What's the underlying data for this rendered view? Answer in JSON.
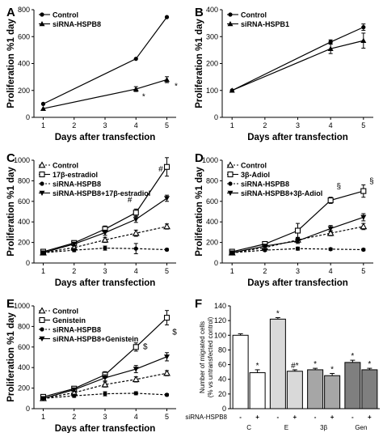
{
  "chart_data": [
    {
      "panel": "A",
      "type": "line",
      "x": [
        1,
        4,
        5
      ],
      "xlim": [
        0.7,
        5.3
      ],
      "ylim": [
        0,
        800
      ],
      "yticks": [
        0,
        200,
        400,
        600,
        800
      ],
      "xticks": [
        1,
        2,
        3,
        4,
        5
      ],
      "xlabel": "Days after transfection",
      "ylabel": "Proliferation %1 day",
      "series": [
        {
          "name": "Control",
          "marker": "circle",
          "dash": false,
          "values": [
            100,
            435,
            745
          ],
          "err": [
            0,
            0,
            0
          ]
        },
        {
          "name": "siRNA-HSPB8",
          "marker": "triangle",
          "dash": false,
          "values": [
            65,
            210,
            280
          ],
          "err": [
            0,
            18,
            22
          ]
        }
      ],
      "annotations": [
        {
          "x": 4.25,
          "y": 135,
          "text": "*"
        },
        {
          "x": 5.3,
          "y": 215,
          "text": "*"
        }
      ],
      "legend": "top-left"
    },
    {
      "panel": "B",
      "type": "line",
      "x": [
        1,
        4,
        5
      ],
      "xlim": [
        0.7,
        5.3
      ],
      "ylim": [
        0,
        400
      ],
      "yticks": [
        0,
        100,
        200,
        300,
        400
      ],
      "xticks": [
        1,
        2,
        3,
        4,
        5
      ],
      "xlabel": "Days after transfection",
      "ylabel": "Proliferation %1 day",
      "series": [
        {
          "name": "Control",
          "marker": "circle",
          "dash": false,
          "values": [
            100,
            280,
            335
          ],
          "err": [
            0,
            8,
            12
          ]
        },
        {
          "name": "siRNA-HSPB1",
          "marker": "triangle",
          "dash": false,
          "values": [
            100,
            255,
            285
          ],
          "err": [
            0,
            18,
            28
          ]
        }
      ],
      "annotations": [],
      "legend": "top-left"
    },
    {
      "panel": "C",
      "type": "line",
      "x": [
        1,
        2,
        3,
        4,
        5
      ],
      "xlim": [
        0.7,
        5.3
      ],
      "ylim": [
        0,
        1000
      ],
      "yticks": [
        0,
        200,
        400,
        600,
        800,
        1000
      ],
      "xticks": [
        1,
        2,
        3,
        4,
        5
      ],
      "xlabel": "Days after transfection",
      "ylabel": "Proliferation %1 day",
      "series": [
        {
          "name": "Control",
          "marker": "triangle-open",
          "dash": true,
          "values": [
            100,
            150,
            225,
            290,
            355
          ],
          "err": [
            10,
            15,
            25,
            30,
            25
          ]
        },
        {
          "name": "17β-estradiol",
          "marker": "square-open",
          "dash": false,
          "values": [
            110,
            195,
            330,
            490,
            935
          ],
          "err": [
            10,
            20,
            30,
            35,
            90
          ]
        },
        {
          "name": "siRNA-HSPB8",
          "marker": "circle",
          "dash": true,
          "values": [
            100,
            125,
            145,
            140,
            130
          ],
          "err": [
            10,
            15,
            20,
            50,
            10
          ]
        },
        {
          "name": "siRNA-HSPB8+17β-estradiol",
          "marker": "triangle-down",
          "dash": false,
          "values": [
            100,
            185,
            295,
            425,
            630
          ],
          "err": [
            10,
            15,
            25,
            30,
            30
          ]
        }
      ],
      "annotations": [
        {
          "x": 3.8,
          "y": 590,
          "text": "#"
        },
        {
          "x": 4.8,
          "y": 890,
          "text": "#"
        }
      ],
      "legend": "top-left"
    },
    {
      "panel": "D",
      "type": "line",
      "x": [
        1,
        2,
        3,
        4,
        5
      ],
      "xlim": [
        0.7,
        5.3
      ],
      "ylim": [
        0,
        1000
      ],
      "yticks": [
        0,
        200,
        400,
        600,
        800,
        1000
      ],
      "xticks": [
        1,
        2,
        3,
        4,
        5
      ],
      "xlabel": "Days after transfection",
      "ylabel": "Proliferation %1 day",
      "series": [
        {
          "name": "Control",
          "marker": "triangle-open",
          "dash": true,
          "values": [
            100,
            150,
            225,
            290,
            355
          ],
          "err": [
            10,
            15,
            25,
            25,
            30
          ]
        },
        {
          "name": "3β-Adiol",
          "marker": "square-open",
          "dash": false,
          "values": [
            110,
            185,
            315,
            610,
            700
          ],
          "err": [
            10,
            20,
            70,
            30,
            60
          ]
        },
        {
          "name": "siRNA-HSPB8",
          "marker": "circle",
          "dash": true,
          "values": [
            100,
            125,
            140,
            135,
            130
          ],
          "err": [
            10,
            10,
            15,
            10,
            10
          ]
        },
        {
          "name": "siRNA-HSPB8+3β-Adiol",
          "marker": "triangle-down",
          "dash": false,
          "values": [
            100,
            165,
            215,
            335,
            445
          ],
          "err": [
            10,
            15,
            25,
            30,
            35
          ]
        }
      ],
      "annotations": [
        {
          "x": 4.25,
          "y": 720,
          "text": "§"
        },
        {
          "x": 5.25,
          "y": 770,
          "text": "§"
        }
      ],
      "legend": "top-left"
    },
    {
      "panel": "E",
      "type": "line",
      "x": [
        1,
        2,
        3,
        4,
        5
      ],
      "xlim": [
        0.7,
        5.3
      ],
      "ylim": [
        0,
        1000
      ],
      "yticks": [
        0,
        200,
        400,
        600,
        800,
        1000
      ],
      "xticks": [
        1,
        2,
        3,
        4,
        5
      ],
      "xlabel": "Days after transfection",
      "ylabel": "Proliferation %1 day",
      "series": [
        {
          "name": "Control",
          "marker": "triangle-open",
          "dash": true,
          "values": [
            100,
            155,
            235,
            285,
            345
          ],
          "err": [
            10,
            15,
            25,
            25,
            25
          ]
        },
        {
          "name": "Genistein",
          "marker": "square-open",
          "dash": false,
          "values": [
            115,
            195,
            330,
            600,
            885
          ],
          "err": [
            10,
            20,
            30,
            40,
            70
          ]
        },
        {
          "name": "siRNA-HSPB8",
          "marker": "circle",
          "dash": true,
          "values": [
            100,
            125,
            145,
            150,
            135
          ],
          "err": [
            10,
            15,
            20,
            15,
            10
          ]
        },
        {
          "name": "siRNA-HSPB8+Genistein",
          "marker": "triangle-down",
          "dash": false,
          "values": [
            100,
            185,
            300,
            385,
            505
          ],
          "err": [
            10,
            15,
            30,
            35,
            40
          ]
        }
      ],
      "annotations": [
        {
          "x": 4.3,
          "y": 580,
          "text": "$"
        },
        {
          "x": 5.25,
          "y": 720,
          "text": "$"
        }
      ],
      "legend": "top-left"
    },
    {
      "panel": "F",
      "type": "bar",
      "ylim": [
        0,
        140
      ],
      "yticks": [
        0,
        20,
        40,
        60,
        80,
        100,
        120,
        140
      ],
      "ylabel": "Number of migrated cells\n(% vs untransfected control)",
      "row_label": "siRNA-HSPB8",
      "groups": [
        {
          "label": "C",
          "color": "#ffffff",
          "values": [
            100,
            49
          ],
          "err": [
            2,
            4
          ],
          "signs": [
            "-",
            "+"
          ],
          "marks": [
            "",
            "*"
          ]
        },
        {
          "label": "E",
          "color": "#d9d9d9",
          "values": [
            122,
            51
          ],
          "err": [
            2,
            2
          ],
          "signs": [
            "-",
            "+"
          ],
          "marks": [
            "*",
            "#*"
          ]
        },
        {
          "label": "3β",
          "color": "#a6a6a6",
          "values": [
            53,
            45
          ],
          "err": [
            2,
            3
          ],
          "signs": [
            "-",
            "+"
          ],
          "marks": [
            "*",
            "*"
          ]
        },
        {
          "label": "Gen",
          "color": "#7f7f7f",
          "values": [
            63,
            53
          ],
          "err": [
            3,
            2
          ],
          "signs": [
            "-",
            "+"
          ],
          "marks": [
            "*",
            "*"
          ]
        }
      ]
    }
  ]
}
